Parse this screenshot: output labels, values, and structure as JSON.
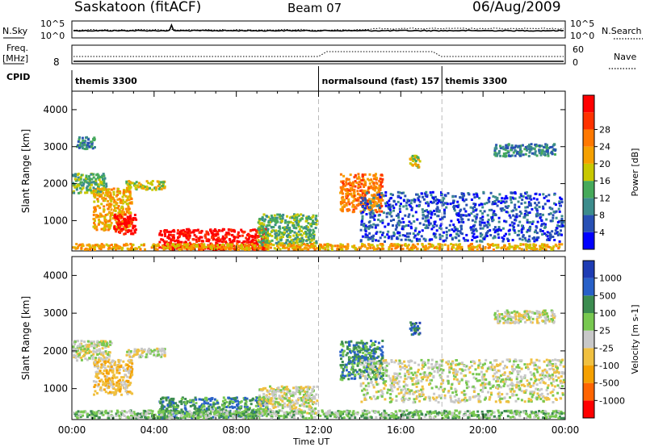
{
  "header": {
    "station": "Saskatoon (fitACF)",
    "beam": "Beam 07",
    "date": "06/Aug/2009"
  },
  "aux_panels": {
    "nsky_label": "N.Sky",
    "nsky_ticks": [
      "10^5",
      "10^0"
    ],
    "nsearch_label": "N.Search",
    "freq_label": [
      "Freq.",
      "[MHz]"
    ],
    "freq_ticks": [
      "8"
    ],
    "nave_label": "Nave",
    "nave_ticks": [
      "60",
      "0"
    ],
    "cpid_label": "CPID",
    "cpid_segments": [
      {
        "label": "themis 3300",
        "start_hour": 0
      },
      {
        "label": "normalsound (fast) 157",
        "start_hour": 12
      },
      {
        "label": "themis 3300",
        "start_hour": 18
      }
    ]
  },
  "chart_data": [
    {
      "type": "heatmap",
      "title": "",
      "ylabel": "Slant Range [km]",
      "xlabel": "",
      "xlim": [
        0,
        24
      ],
      "ylim": [
        180,
        4500
      ],
      "yticks": [
        "1000",
        "2000",
        "3000",
        "4000"
      ],
      "colorbar": {
        "label": "Power [dB]",
        "tick_labels": [
          "4",
          "8",
          "12",
          "16",
          "20",
          "24",
          "28"
        ],
        "colors": [
          "#0000ff",
          "#2850b4",
          "#3c8c8c",
          "#46aa5a",
          "#c8c800",
          "#f5a000",
          "#ff7800",
          "#ff3200",
          "#ff0000"
        ]
      },
      "regions": [
        {
          "x": [
            0.0,
            1.8
          ],
          "y": [
            1700,
            2300
          ],
          "level": 3
        },
        {
          "x": [
            1.0,
            3.0
          ],
          "y": [
            700,
            1900
          ],
          "level": 5
        },
        {
          "x": [
            2.0,
            3.2
          ],
          "y": [
            600,
            1200
          ],
          "level": 8
        },
        {
          "x": [
            2.6,
            4.6
          ],
          "y": [
            1800,
            2100
          ],
          "level": 4
        },
        {
          "x": [
            4.2,
            9.6
          ],
          "y": [
            180,
            800
          ],
          "level": 8
        },
        {
          "x": [
            9.0,
            12.0
          ],
          "y": [
            300,
            1200
          ],
          "level": 3
        },
        {
          "x": [
            0.0,
            24.0
          ],
          "y": [
            180,
            400
          ],
          "level": 5
        },
        {
          "x": [
            13.0,
            15.2
          ],
          "y": [
            1200,
            2300
          ],
          "level": 6
        },
        {
          "x": [
            16.4,
            17.0
          ],
          "y": [
            2400,
            2800
          ],
          "level": 4
        },
        {
          "x": [
            14.0,
            24.0
          ],
          "y": [
            400,
            1800
          ],
          "level": 1
        },
        {
          "x": [
            20.5,
            23.6
          ],
          "y": [
            2700,
            3100
          ],
          "level": 2
        },
        {
          "x": [
            0.2,
            1.2
          ],
          "y": [
            2900,
            3300
          ],
          "level": 2
        }
      ]
    },
    {
      "type": "heatmap",
      "title": "",
      "ylabel": "Slant Range [km]",
      "xlabel": "Time UT",
      "xlim": [
        0,
        24
      ],
      "ylim": [
        180,
        4500
      ],
      "yticks": [
        "1000",
        "2000",
        "3000",
        "4000"
      ],
      "xticks": [
        "00:00",
        "04:00",
        "08:00",
        "12:00",
        "16:00",
        "20:00",
        "00:00"
      ],
      "colorbar": {
        "label": "Velocity [m s-1]",
        "tick_labels": [
          "1000",
          "500",
          "100",
          "25",
          "-25",
          "-100",
          "-500",
          "-1000"
        ],
        "colors": [
          "#1e3cb4",
          "#2860c8",
          "#3c8c50",
          "#78c850",
          "#c8c8c8",
          "#f0c040",
          "#f5a000",
          "#ff6400",
          "#ff0000"
        ]
      },
      "regions": [
        {
          "x": [
            0.0,
            2.0
          ],
          "y": [
            1700,
            2300
          ],
          "level": 4
        },
        {
          "x": [
            1.0,
            3.0
          ],
          "y": [
            800,
            1800
          ],
          "level": 3
        },
        {
          "x": [
            2.6,
            4.6
          ],
          "y": [
            1800,
            2100
          ],
          "level": 4
        },
        {
          "x": [
            4.2,
            9.6
          ],
          "y": [
            180,
            800
          ],
          "level": 6
        },
        {
          "x": [
            9.0,
            12.0
          ],
          "y": [
            300,
            1100
          ],
          "level": 4
        },
        {
          "x": [
            0.0,
            24.0
          ],
          "y": [
            180,
            450
          ],
          "level": 5
        },
        {
          "x": [
            13.0,
            15.2
          ],
          "y": [
            1200,
            2300
          ],
          "level": 6
        },
        {
          "x": [
            16.4,
            17.0
          ],
          "y": [
            2400,
            2800
          ],
          "level": 7
        },
        {
          "x": [
            14.0,
            24.0
          ],
          "y": [
            600,
            1800
          ],
          "level": 4
        },
        {
          "x": [
            20.5,
            23.6
          ],
          "y": [
            2700,
            3100
          ],
          "level": 4
        }
      ]
    }
  ]
}
